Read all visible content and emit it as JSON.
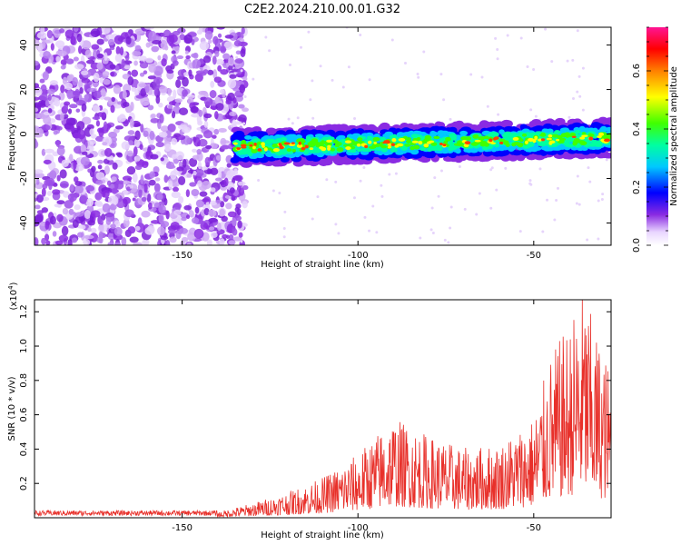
{
  "title": "C2E2.2024.210.00.01.G32",
  "chart_data": [
    {
      "type": "heatmap",
      "xlabel": "Height of straight line (km)",
      "ylabel": "Frequency (Hz)",
      "xlim": [
        -192,
        -28
      ],
      "ylim": [
        -50,
        48
      ],
      "x_ticks": [
        -150,
        -100,
        -50
      ],
      "y_ticks": [
        -40,
        -20,
        0,
        20,
        40
      ],
      "colorbar": {
        "label": "Normalized spectral amplitude",
        "range": [
          0.0,
          0.75
        ],
        "ticks": [
          0.0,
          0.2,
          0.4,
          0.6
        ],
        "colors": [
          "#ffffff",
          "#8a2be2",
          "#0000ff",
          "#00ffff",
          "#00ff00",
          "#ffff00",
          "#ff7f00",
          "#ff0000",
          "#ff1493"
        ]
      },
      "features": {
        "noise_region_x": [
          -192,
          -135
        ],
        "signal_band_x": [
          -135,
          -28
        ],
        "signal_band_center_freq_hz": -4,
        "signal_band_half_width_hz": 8
      }
    },
    {
      "type": "line",
      "xlabel": "Height of straight line (km)",
      "ylabel": "SNR (10 * v/v)",
      "y_multiplier": "(x10",
      "y_multiplier_exp": "4",
      "y_multiplier_close": ")",
      "xlim": [
        -192,
        -28
      ],
      "ylim": [
        0,
        1.27
      ],
      "x_ticks": [
        -150,
        -100,
        -50
      ],
      "y_ticks": [
        0.2,
        0.4,
        0.6,
        0.8,
        1.0,
        1.2
      ],
      "y_tick_labels": [
        "0.2",
        "0.4",
        "0.6",
        "0.8",
        "1.0",
        "1.2"
      ],
      "series": [
        {
          "color": "#e8302a",
          "envelope": [
            {
              "x": -192,
              "y": 0.03
            },
            {
              "x": -140,
              "y": 0.03
            },
            {
              "x": -130,
              "y": 0.08
            },
            {
              "x": -120,
              "y": 0.14
            },
            {
              "x": -110,
              "y": 0.22
            },
            {
              "x": -100,
              "y": 0.35
            },
            {
              "x": -90,
              "y": 0.55
            },
            {
              "x": -80,
              "y": 0.45
            },
            {
              "x": -70,
              "y": 0.38
            },
            {
              "x": -60,
              "y": 0.4
            },
            {
              "x": -50,
              "y": 0.55
            },
            {
              "x": -45,
              "y": 0.9
            },
            {
              "x": -40,
              "y": 1.05
            },
            {
              "x": -36,
              "y": 1.26
            },
            {
              "x": -32,
              "y": 1.0
            },
            {
              "x": -28,
              "y": 0.8
            }
          ]
        }
      ]
    }
  ]
}
